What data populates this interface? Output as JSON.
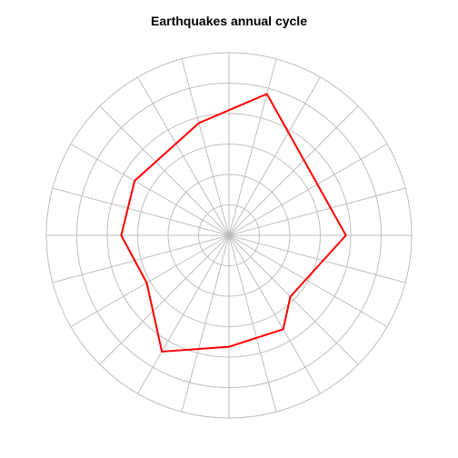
{
  "chart_data": {
    "type": "line",
    "subtype": "polar",
    "title": "Earthquakes annual cycle",
    "radial_max": 6,
    "grid_rings": [
      1,
      2,
      3,
      4,
      5,
      6
    ],
    "spokes": 24,
    "grid": true,
    "angular_direction": "clockwise",
    "start_angle": "top",
    "series": [
      {
        "color": "#ff0000",
        "closed": true,
        "points": [
          {
            "theta": 15,
            "r": 4.81
          },
          {
            "theta": 90,
            "r": 3.84
          },
          {
            "theta": 135,
            "r": 2.85
          },
          {
            "theta": 150,
            "r": 3.56
          },
          {
            "theta": 180,
            "r": 3.66
          },
          {
            "theta": 210,
            "r": 4.41
          },
          {
            "theta": 240,
            "r": 3.12
          },
          {
            "theta": 270,
            "r": 3.54
          },
          {
            "theta": 300,
            "r": 3.58
          },
          {
            "theta": 345,
            "r": 3.82
          }
        ]
      }
    ]
  }
}
